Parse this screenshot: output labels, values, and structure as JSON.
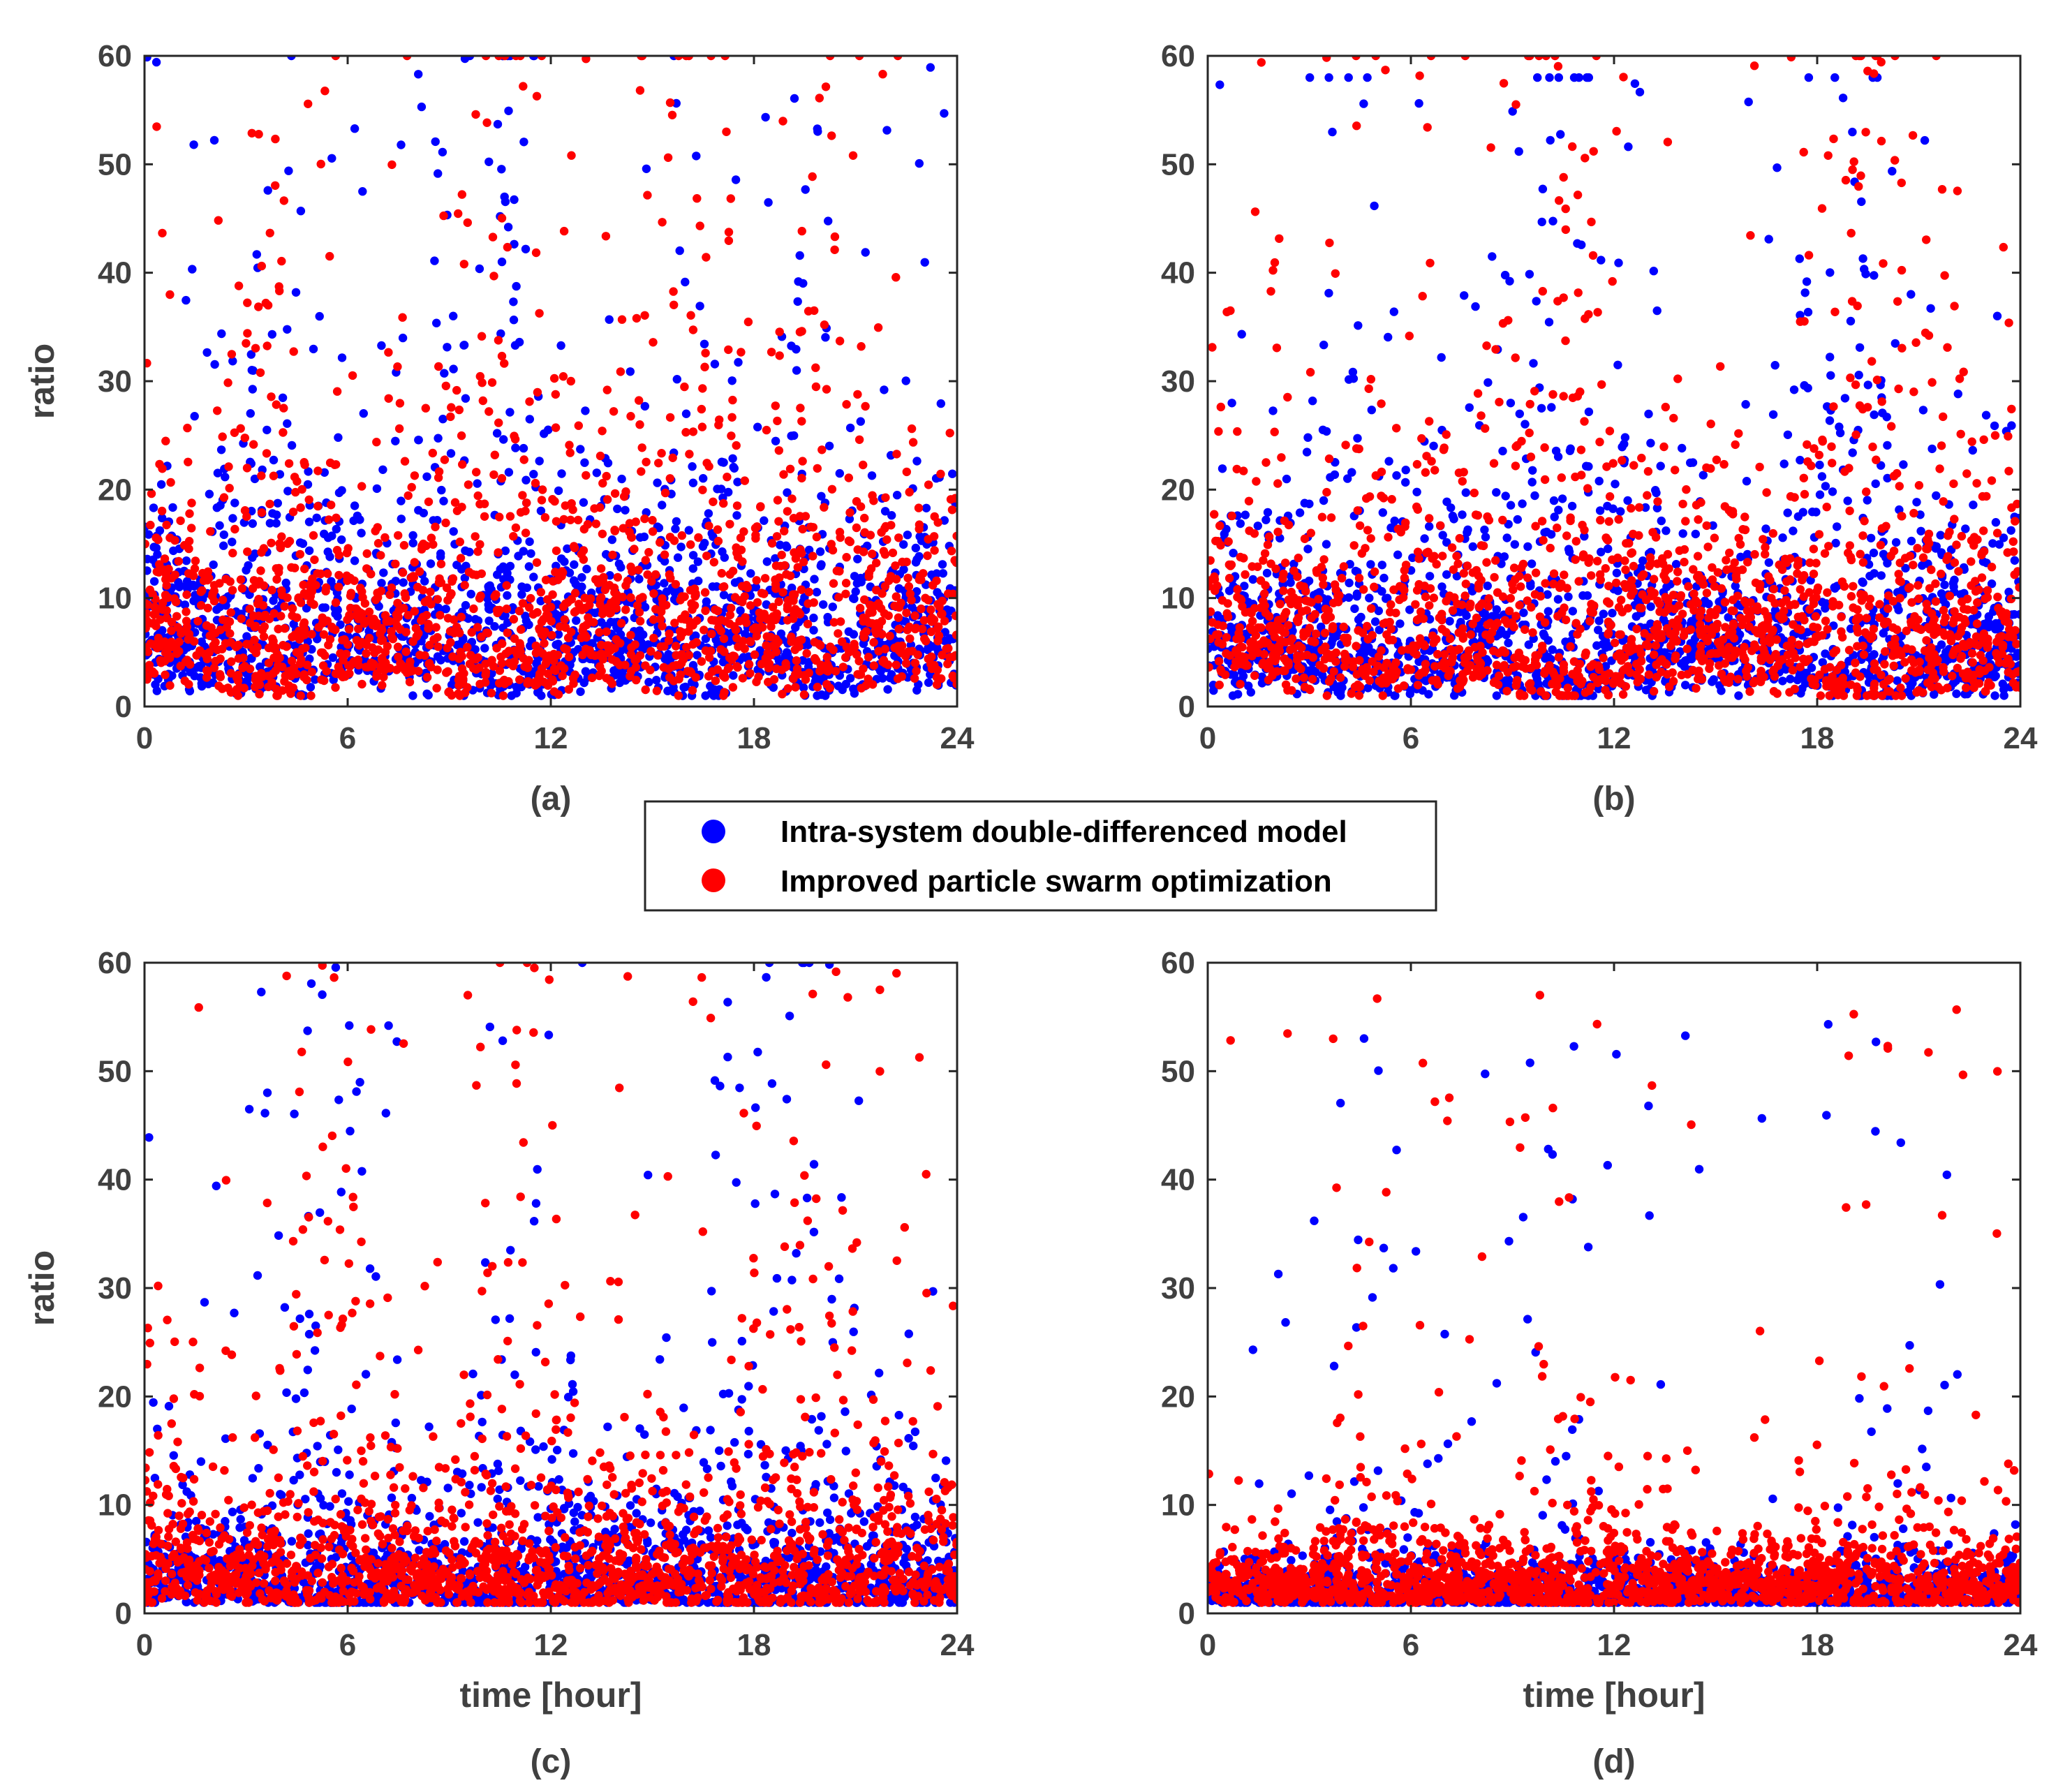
{
  "colors": {
    "series_a": "#0000ff",
    "series_b": "#ff0000",
    "axis": "#262626",
    "text": "#404040"
  },
  "legend": {
    "entries": [
      {
        "label": "Intra-system double-differenced model",
        "color": "#0000ff"
      },
      {
        "label": "Improved particle swarm optimization",
        "color": "#ff0000"
      }
    ]
  },
  "chart_data": [
    {
      "id": "a",
      "type": "scatter",
      "label": "(a)",
      "xlabel": "",
      "ylabel": "ratio",
      "xlim": [
        0,
        24
      ],
      "ylim": [
        0,
        60
      ],
      "xticks": [
        "0",
        "6",
        "12",
        "18",
        "24"
      ],
      "yticks": [
        "0",
        "10",
        "20",
        "30",
        "40",
        "50",
        "60"
      ],
      "series": [
        {
          "name": "Intra-system double-differenced model",
          "color": "#0000ff",
          "profile": {
            "base_median": 7.5,
            "spread": 0.6,
            "peak_hours": [
              4,
              9,
              11,
              16,
              20
            ],
            "max_outlier": 60
          }
        },
        {
          "name": "Improved particle swarm optimization",
          "color": "#ff0000",
          "profile": {
            "base_median": 8.5,
            "spread": 0.6,
            "peak_hours": [
              4,
              9,
              11,
              16,
              20
            ],
            "max_outlier": 60
          }
        }
      ]
    },
    {
      "id": "b",
      "type": "scatter",
      "label": "(b)",
      "xlabel": "",
      "ylabel": "",
      "xlim": [
        0,
        24
      ],
      "ylim": [
        0,
        60
      ],
      "xticks": [
        "0",
        "6",
        "12",
        "18",
        "24"
      ],
      "yticks": [
        "0",
        "10",
        "20",
        "30",
        "40",
        "50",
        "60"
      ],
      "series": [
        {
          "name": "Intra-system double-differenced model",
          "color": "#0000ff",
          "profile": {
            "base_median": 6.5,
            "spread": 0.65,
            "peak_hours": [
              5,
              10,
              11,
              19,
              20
            ],
            "max_outlier": 58
          }
        },
        {
          "name": "Improved particle swarm optimization",
          "color": "#ff0000",
          "profile": {
            "base_median": 7.5,
            "spread": 0.65,
            "peak_hours": [
              5,
              10,
              11,
              19,
              20
            ],
            "max_outlier": 60
          }
        }
      ]
    },
    {
      "id": "c",
      "type": "scatter",
      "label": "(c)",
      "xlabel": "time [hour]",
      "ylabel": "ratio",
      "xlim": [
        0,
        24
      ],
      "ylim": [
        0,
        60
      ],
      "xticks": [
        "0",
        "6",
        "12",
        "18",
        "24"
      ],
      "yticks": [
        "0",
        "10",
        "20",
        "30",
        "40",
        "50",
        "60"
      ],
      "series": [
        {
          "name": "Intra-system double-differenced model",
          "color": "#0000ff",
          "profile": {
            "base_median": 3.5,
            "spread": 0.75,
            "peak_hours": [
              5,
              11,
              18,
              20
            ],
            "max_outlier": 60
          }
        },
        {
          "name": "Improved particle swarm optimization",
          "color": "#ff0000",
          "profile": {
            "base_median": 4.5,
            "spread": 0.75,
            "peak_hours": [
              5,
              11,
              18,
              20
            ],
            "max_outlier": 60
          }
        }
      ]
    },
    {
      "id": "d",
      "type": "scatter",
      "label": "(d)",
      "xlabel": "time [hour]",
      "ylabel": "",
      "xlim": [
        0,
        24
      ],
      "ylim": [
        0,
        60
      ],
      "xticks": [
        "0",
        "6",
        "12",
        "18",
        "24"
      ],
      "yticks": [
        "0",
        "10",
        "20",
        "30",
        "40",
        "50",
        "60"
      ],
      "series": [
        {
          "name": "Intra-system double-differenced model",
          "color": "#0000ff",
          "profile": {
            "base_median": 2.0,
            "spread": 0.5,
            "peak_hours": [
              5,
              11,
              20
            ],
            "max_outlier": 57
          }
        },
        {
          "name": "Improved particle swarm optimization",
          "color": "#ff0000",
          "profile": {
            "base_median": 3.0,
            "spread": 0.55,
            "peak_hours": [
              5,
              11,
              20
            ],
            "max_outlier": 58
          }
        }
      ]
    }
  ]
}
